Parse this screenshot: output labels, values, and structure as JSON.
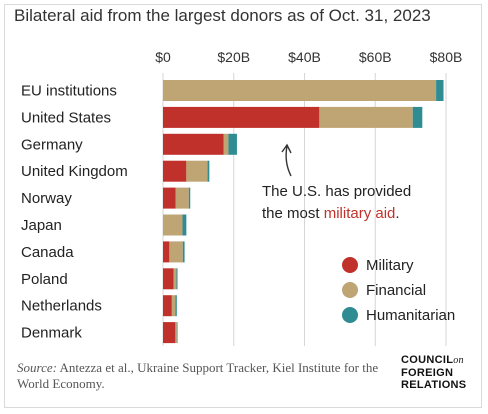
{
  "title": "Bilateral aid from the largest donors as of Oct. 31, 2023",
  "chart_data": {
    "type": "bar",
    "orientation": "horizontal",
    "stacked": true,
    "title": "Bilateral aid from the largest donors as of Oct. 31, 2023",
    "xlabel": "",
    "ylabel": "",
    "x_ticks": [
      "$0",
      "$20B",
      "$40B",
      "$60B",
      "$80B"
    ],
    "xlim": [
      0,
      80
    ],
    "grid": true,
    "legend_position": "right",
    "categories": [
      "EU institutions",
      "United States",
      "Germany",
      "United Kingdom",
      "Norway",
      "Japan",
      "Canada",
      "Poland",
      "Netherlands",
      "Denmark"
    ],
    "series": [
      {
        "name": "Military",
        "color": "#c0312b",
        "values": [
          0,
          44.2,
          17.1,
          6.6,
          3.6,
          0,
          1.8,
          3.0,
          2.5,
          3.5
        ]
      },
      {
        "name": "Financial",
        "color": "#bfa574",
        "values": [
          77.2,
          26.4,
          1.4,
          6.0,
          3.7,
          5.5,
          3.8,
          0.8,
          1.0,
          0.4
        ]
      },
      {
        "name": "Humanitarian",
        "color": "#2f8c93",
        "values": [
          2.1,
          2.7,
          2.4,
          0.5,
          0.4,
          1.1,
          0.5,
          0.3,
          0.4,
          0.2
        ]
      }
    ],
    "annotation": {
      "line1": "The U.S. has provided",
      "line2_prefix": "the most ",
      "line2_highlight": "military aid",
      "line2_suffix": "."
    }
  },
  "source": {
    "label": "Source:",
    "text": "Antezza et al., Ukraine Support Tracker, Kiel Institute for the World Economy."
  },
  "logo": {
    "line1": "COUNCIL",
    "on": "on",
    "line2": "FOREIGN",
    "line3": "RELATIONS"
  }
}
